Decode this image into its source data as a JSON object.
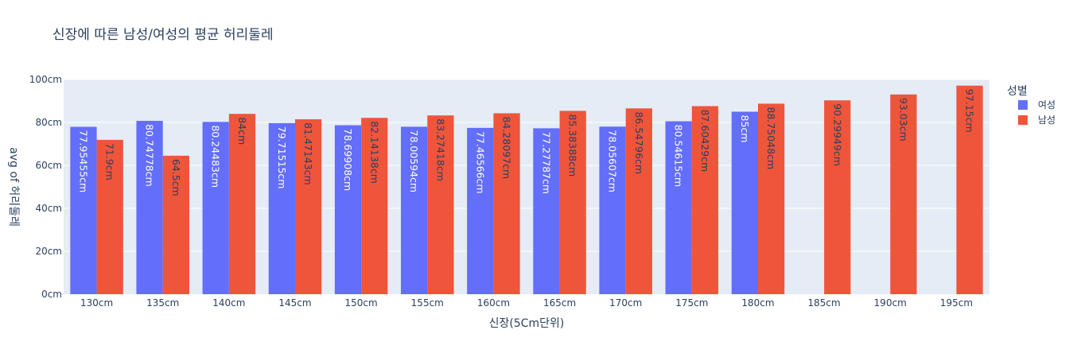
{
  "chart_data": {
    "type": "bar",
    "title": "신장에 따른 남성/여성의 평균 허리둘레",
    "xlabel": "신장(5Cm단위)",
    "ylabel": "avg of 허리둘레",
    "categories": [
      "130cm",
      "135cm",
      "140cm",
      "145cm",
      "150cm",
      "155cm",
      "160cm",
      "165cm",
      "170cm",
      "175cm",
      "180cm",
      "185cm",
      "190cm",
      "195cm"
    ],
    "ylim": [
      0,
      100
    ],
    "yticks": [
      0,
      20,
      40,
      60,
      80,
      100
    ],
    "ytick_labels": [
      "0cm",
      "20cm",
      "40cm",
      "60cm",
      "80cm",
      "100cm"
    ],
    "grid": true,
    "legend_title": "성별",
    "legend_position": "right",
    "series": [
      {
        "name": "여성",
        "color": "#636efa",
        "label_color": "#ffffff",
        "values": [
          77.95455,
          80.74778,
          80.24483,
          79.71515,
          78.69908,
          78.00594,
          77.46566,
          77.27787,
          78.05607,
          80.54615,
          85,
          null,
          null,
          null
        ],
        "labels": [
          "77.95455cm",
          "80.74778cm",
          "80.24483cm",
          "79.71515cm",
          "78.69908cm",
          "78.00594cm",
          "77.46566cm",
          "77.27787cm",
          "78.05607cm",
          "80.54615cm",
          "85cm",
          "",
          "",
          ""
        ]
      },
      {
        "name": "남성",
        "color": "#ef553b",
        "label_color": "#2a3f5f",
        "values": [
          71.9,
          64.5,
          84,
          81.47143,
          82.14138,
          83.27418,
          84.28097,
          85.38388,
          86.54796,
          87.60429,
          88.75048,
          90.29949,
          93.03,
          97.15
        ],
        "labels": [
          "71.9cm",
          "64.5cm",
          "84cm",
          "81.47143cm",
          "82.14138cm",
          "83.27418cm",
          "84.28097cm",
          "85.38388cm",
          "86.54796cm",
          "87.60429cm",
          "88.75048cm",
          "90.29949cm",
          "93.03cm",
          "97.15cm"
        ]
      }
    ]
  },
  "colors": {
    "plot_background": "#e5ecf6",
    "grid": "#ffffff",
    "text": "#2a3f5f"
  }
}
